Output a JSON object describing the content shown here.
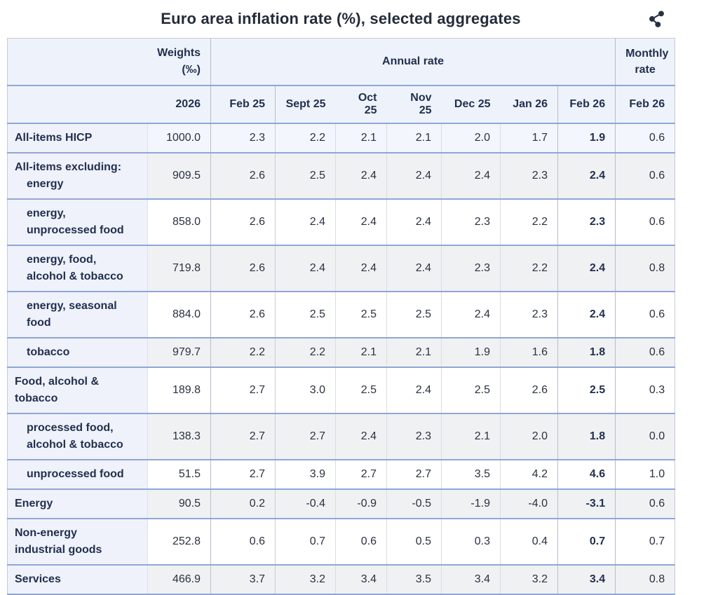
{
  "title": "Euro area inflation rate (%), selected aggregates",
  "share_icon": "share-icon",
  "colors": {
    "row_separator": "#8fa7d6",
    "header_bg": "#eef2fa",
    "label_column_bg": "#eff2fa",
    "grey_row_bg": "#f0f1f3",
    "highlight_row_bg": "#f3f6fc",
    "text": "#22304e"
  },
  "table": {
    "header": {
      "weights_label": "Weights",
      "weights_unit": "(‰)",
      "annual_rate_label": "Annual rate",
      "monthly_rate_label": "Monthly rate",
      "weights_year": "2026",
      "annual_months": [
        "Feb 25",
        "Sept 25",
        "Oct 25",
        "Nov 25",
        "Dec 25",
        "Jan 26",
        "Feb 26"
      ],
      "monthly_month": "Feb 26"
    },
    "rows": [
      {
        "label_lines": [
          "All-items HICP"
        ],
        "line_indents": [
          0
        ],
        "weight": "1000.0",
        "annual": [
          "2.3",
          "2.2",
          "2.1",
          "2.1",
          "2.0",
          "1.7",
          "1.9"
        ],
        "monthly": "0.6",
        "highlight": true
      },
      {
        "label_lines": [
          "All-items excluding:",
          "energy"
        ],
        "line_indents": [
          0,
          1
        ],
        "weight": "909.5",
        "annual": [
          "2.6",
          "2.5",
          "2.4",
          "2.4",
          "2.4",
          "2.3",
          "2.4"
        ],
        "monthly": "0.6"
      },
      {
        "label_lines": [
          "energy,",
          "unprocessed food"
        ],
        "line_indents": [
          1,
          1
        ],
        "weight": "858.0",
        "annual": [
          "2.6",
          "2.4",
          "2.4",
          "2.4",
          "2.3",
          "2.2",
          "2.3"
        ],
        "monthly": "0.6"
      },
      {
        "label_lines": [
          "energy, food,",
          "alcohol & tobacco"
        ],
        "line_indents": [
          1,
          1
        ],
        "weight": "719.8",
        "annual": [
          "2.6",
          "2.4",
          "2.4",
          "2.4",
          "2.3",
          "2.2",
          "2.4"
        ],
        "monthly": "0.8"
      },
      {
        "label_lines": [
          "energy, seasonal",
          "food"
        ],
        "line_indents": [
          1,
          1
        ],
        "weight": "884.0",
        "annual": [
          "2.6",
          "2.5",
          "2.5",
          "2.5",
          "2.4",
          "2.3",
          "2.4"
        ],
        "monthly": "0.6"
      },
      {
        "label_lines": [
          "tobacco"
        ],
        "line_indents": [
          1
        ],
        "weight": "979.7",
        "annual": [
          "2.2",
          "2.2",
          "2.1",
          "2.1",
          "1.9",
          "1.6",
          "1.8"
        ],
        "monthly": "0.6"
      },
      {
        "label_lines": [
          "Food, alcohol &",
          "tobacco"
        ],
        "line_indents": [
          0,
          0
        ],
        "weight": "189.8",
        "annual": [
          "2.7",
          "3.0",
          "2.5",
          "2.4",
          "2.5",
          "2.6",
          "2.5"
        ],
        "monthly": "0.3"
      },
      {
        "label_lines": [
          "processed food,",
          "alcohol & tobacco"
        ],
        "line_indents": [
          1,
          1
        ],
        "weight": "138.3",
        "annual": [
          "2.7",
          "2.7",
          "2.4",
          "2.3",
          "2.1",
          "2.0",
          "1.8"
        ],
        "monthly": "0.0"
      },
      {
        "label_lines": [
          "unprocessed food"
        ],
        "line_indents": [
          1
        ],
        "weight": "51.5",
        "annual": [
          "2.7",
          "3.9",
          "2.7",
          "2.7",
          "3.5",
          "4.2",
          "4.6"
        ],
        "monthly": "1.0"
      },
      {
        "label_lines": [
          "Energy"
        ],
        "line_indents": [
          0
        ],
        "weight": "90.5",
        "annual": [
          "0.2",
          "-0.4",
          "-0.9",
          "-0.5",
          "-1.9",
          "-4.0",
          "-3.1"
        ],
        "monthly": "0.6"
      },
      {
        "label_lines": [
          "Non-energy",
          "industrial goods"
        ],
        "line_indents": [
          0,
          0
        ],
        "weight": "252.8",
        "annual": [
          "0.6",
          "0.7",
          "0.6",
          "0.5",
          "0.3",
          "0.4",
          "0.7"
        ],
        "monthly": "0.7"
      },
      {
        "label_lines": [
          "Services"
        ],
        "line_indents": [
          0
        ],
        "weight": "466.9",
        "annual": [
          "3.7",
          "3.2",
          "3.4",
          "3.5",
          "3.4",
          "3.2",
          "3.4"
        ],
        "monthly": "0.8"
      }
    ]
  }
}
